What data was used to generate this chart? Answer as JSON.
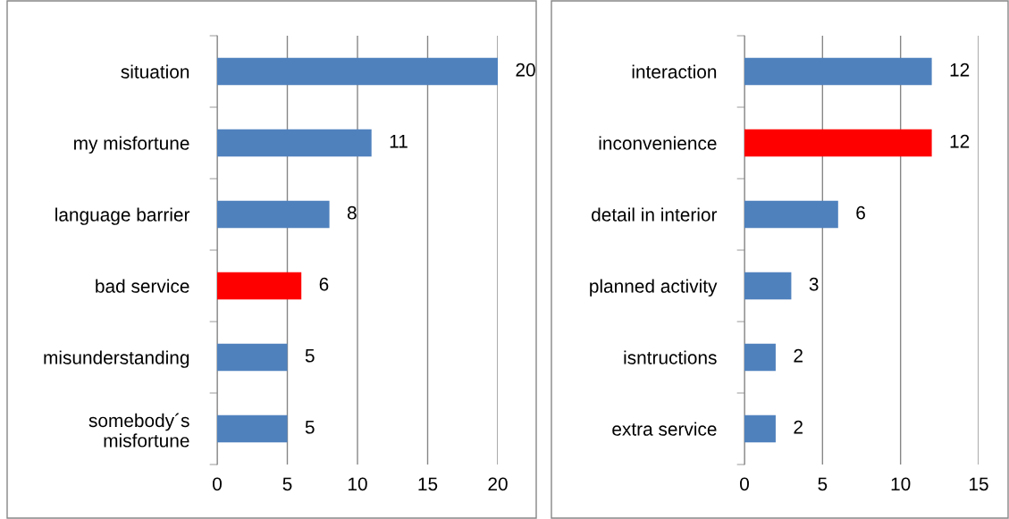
{
  "chart_data": [
    {
      "type": "bar",
      "orientation": "horizontal",
      "categories": [
        "situation",
        "my misfortune",
        "language barrier",
        "bad service",
        "misunderstanding",
        "somebody´s misfortune"
      ],
      "values": [
        20,
        11,
        8,
        6,
        5,
        5
      ],
      "colors": [
        "#4f81bd",
        "#4f81bd",
        "#4f81bd",
        "#ff0000",
        "#4f81bd",
        "#4f81bd"
      ],
      "xlim": [
        0,
        20
      ],
      "xticks": [
        0,
        5,
        10,
        15,
        20
      ],
      "grid": "x",
      "data_labels": true
    },
    {
      "type": "bar",
      "orientation": "horizontal",
      "categories": [
        "interaction",
        "inconvenience",
        "detail in interior",
        "planned activity",
        "isntructions",
        "extra service"
      ],
      "values": [
        12,
        12,
        6,
        3,
        2,
        2
      ],
      "colors": [
        "#4f81bd",
        "#ff0000",
        "#4f81bd",
        "#4f81bd",
        "#4f81bd",
        "#4f81bd"
      ],
      "xlim": [
        0,
        15
      ],
      "xticks": [
        0,
        5,
        10,
        15
      ],
      "grid": "x",
      "data_labels": true
    }
  ]
}
